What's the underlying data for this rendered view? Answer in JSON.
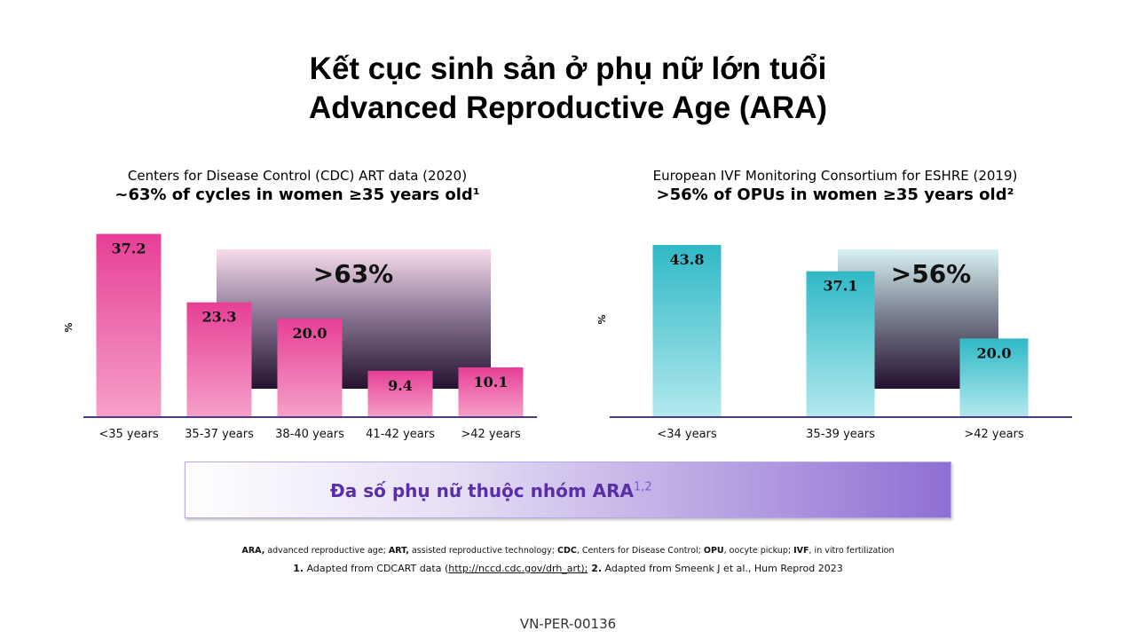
{
  "title_line1": "Kết cục sinh sản ở phụ nữ lớn tuổi",
  "title_line2": "Advanced Reproductive Age (ARA)",
  "left_panel": {
    "subtitle": "Centers for Disease Control (CDC) ART data (2020)",
    "headline": "~63% of cycles in women ≥35 years old¹",
    "ylabel": "%",
    "highlight_label": ">63%"
  },
  "right_panel": {
    "subtitle": "European IVF Monitoring Consortium for ESHRE (2019)",
    "headline": ">56% of OPUs in women ≥35 years old²",
    "ylabel": "%",
    "highlight_label": ">56%"
  },
  "chart_data": [
    {
      "type": "bar",
      "title": "Centers for Disease Control (CDC) ART data (2020)",
      "categories": [
        "<35  years",
        "35-37 years",
        "38-40 years",
        "41-42 years",
        ">42  years"
      ],
      "values": [
        37.2,
        23.3,
        20.0,
        9.4,
        10.1
      ],
      "ylabel": "%",
      "ylim": [
        0,
        40
      ],
      "bar_color": "#e8459a",
      "highlight_color": "#2a1238"
    },
    {
      "type": "bar",
      "title": "European IVF Monitoring Consortium for ESHRE (2019)",
      "categories": [
        "<34  years",
        "35-39 years",
        ">42  years"
      ],
      "values": [
        43.8,
        37.1,
        20.0
      ],
      "ylabel": "%",
      "ylim": [
        0,
        43.8
      ],
      "bar_color": "#36bcc8",
      "highlight_color": "#2a1238"
    }
  ],
  "banner": {
    "text": "Đa số phụ nữ thuộc nhóm ARA",
    "sup": "1,2"
  },
  "footnote_abbrev": {
    "k1": "ARA,",
    "v1": " advanced reproductive age; ",
    "k2": "ART,",
    "v2": " assisted reproductive technology; ",
    "k3": "CDC",
    "v3": ",  Centers for Disease Control; ",
    "k4": "OPU",
    "v4": ", oocyte pickup; ",
    "k5": "IVF",
    "v5": ", in vitro fertilization"
  },
  "footnote_refs": {
    "n1": "1.",
    "t1": " Adapted from CDCART data (",
    "link": "http://nccd.cdc.gov/drh_art);",
    "n2": " 2.",
    "t2": " Adapted from Smeenk J et al., Hum Reprod 2023"
  },
  "doc_code": "VN-PER-00136"
}
